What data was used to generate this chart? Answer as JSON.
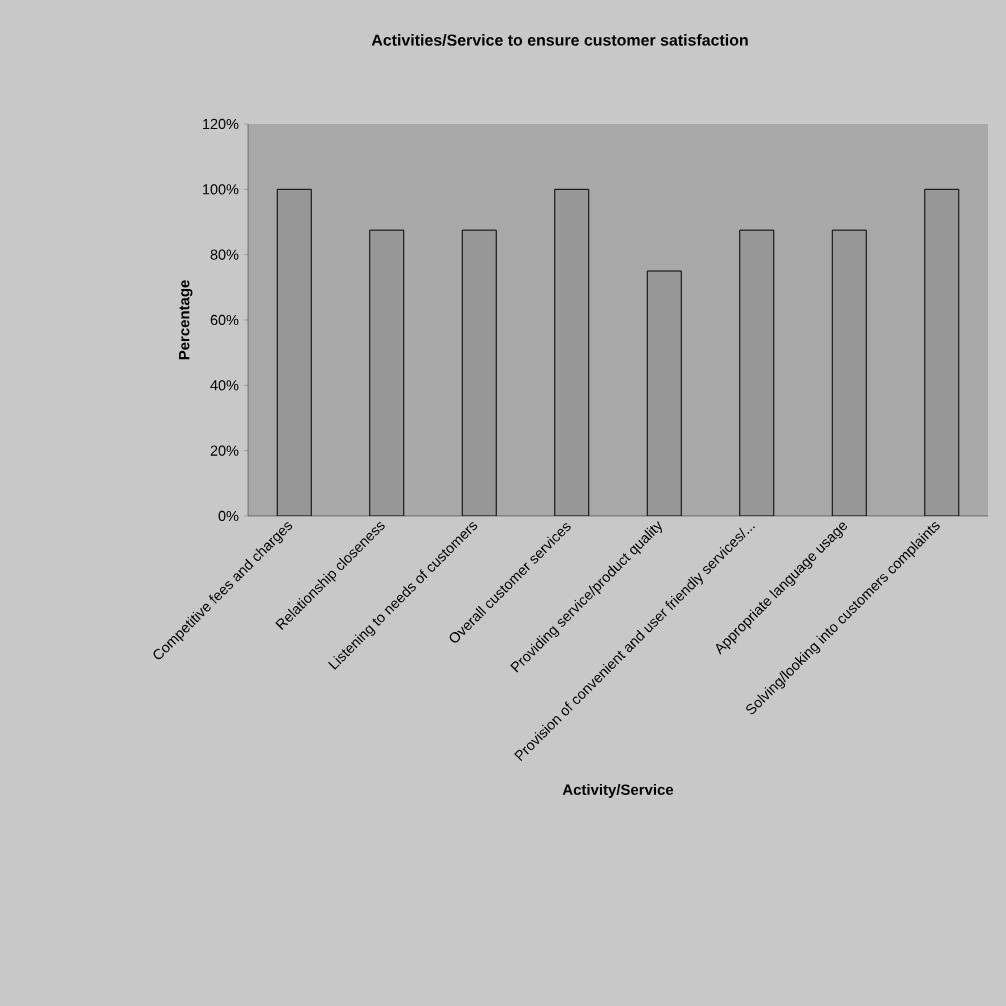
{
  "chart_data": {
    "type": "bar",
    "title": "Activities/Service to ensure customer satisfaction",
    "xlabel": "Activity/Service",
    "ylabel": "Percentage",
    "categories": [
      "Competitive fees and charges",
      "Relationship closeness",
      "Listening to needs of customers",
      "Overall customer services",
      "Providing service/product quality",
      "Provision of convenient and user friendly services/...",
      "Appropriate language usage",
      "Solving/looking into customers complaints"
    ],
    "values": [
      100,
      87.5,
      87.5,
      100,
      75,
      87.5,
      87.5,
      100
    ],
    "color": "#979797",
    "ylim": [
      0,
      120
    ],
    "yticks": [
      {
        "value": 0,
        "label": "0%"
      },
      {
        "value": 20,
        "label": "20%"
      },
      {
        "value": 40,
        "label": "40%"
      },
      {
        "value": 60,
        "label": "60%"
      },
      {
        "value": 80,
        "label": "80%"
      },
      {
        "value": 100,
        "label": "100%"
      },
      {
        "value": 120,
        "label": "120%"
      }
    ],
    "grid": false
  }
}
